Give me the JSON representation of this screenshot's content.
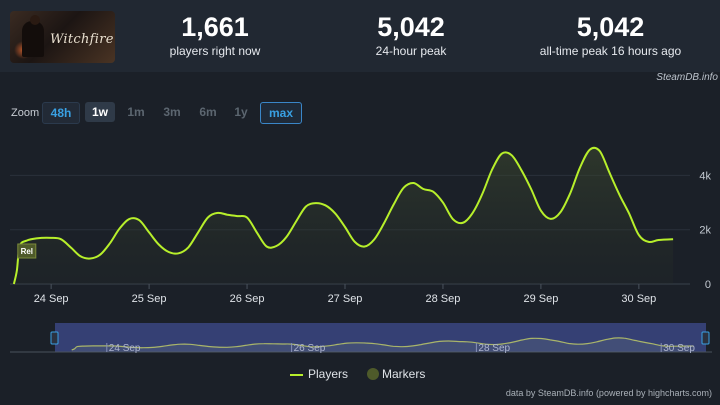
{
  "header": {
    "logo_icon": "witchfire-game-logo",
    "logo_text": "Witchfire",
    "stats": [
      {
        "value": "1,661",
        "label": "players right now"
      },
      {
        "value": "5,042",
        "label": "24-hour peak"
      },
      {
        "value": "5,042",
        "label": "all-time peak 16 hours ago"
      }
    ],
    "credit": "SteamDB.info"
  },
  "zoom": {
    "label": "Zoom",
    "buttons": [
      "48h",
      "1w",
      "1m",
      "3m",
      "6m",
      "1y",
      "max"
    ]
  },
  "legend": {
    "players": "Players",
    "markers": "Markers"
  },
  "footer": {
    "credit": "data by SteamDB.info (powered by highcharts.com)"
  },
  "colors": {
    "line": "#b7ef2b",
    "marker": "#4e5a2a",
    "navigator_bg": "#3a4681",
    "background": "#1b2028"
  },
  "chart_data": {
    "type": "line",
    "series": [
      {
        "name": "Players"
      }
    ],
    "x_ticks": [
      "24 Sep",
      "25 Sep",
      "26 Sep",
      "27 Sep",
      "28 Sep",
      "29 Sep",
      "30 Sep"
    ],
    "navigator_ticks": [
      "24 Sep",
      "26 Sep",
      "28 Sep",
      "30 Sep"
    ],
    "y_ticks": [
      "0",
      "2k",
      "4k"
    ],
    "ylim": [
      0,
      5600
    ],
    "xlim": [
      -0.42,
      6.42
    ],
    "marker_label": "Rel",
    "points": [
      [
        -0.38,
        0
      ],
      [
        -0.35,
        500
      ],
      [
        -0.32,
        1400
      ],
      [
        -0.25,
        1600
      ],
      [
        -0.15,
        1680
      ],
      [
        0,
        1700
      ],
      [
        0.1,
        1650
      ],
      [
        0.2,
        1350
      ],
      [
        0.3,
        1020
      ],
      [
        0.4,
        940
      ],
      [
        0.5,
        1080
      ],
      [
        0.6,
        1500
      ],
      [
        0.7,
        2050
      ],
      [
        0.8,
        2400
      ],
      [
        0.9,
        2350
      ],
      [
        1.0,
        1900
      ],
      [
        1.1,
        1450
      ],
      [
        1.2,
        1180
      ],
      [
        1.3,
        1130
      ],
      [
        1.4,
        1350
      ],
      [
        1.5,
        1900
      ],
      [
        1.6,
        2450
      ],
      [
        1.7,
        2620
      ],
      [
        1.8,
        2550
      ],
      [
        1.9,
        2500
      ],
      [
        2.0,
        2450
      ],
      [
        2.1,
        1900
      ],
      [
        2.2,
        1380
      ],
      [
        2.3,
        1400
      ],
      [
        2.4,
        1720
      ],
      [
        2.5,
        2300
      ],
      [
        2.6,
        2850
      ],
      [
        2.7,
        2980
      ],
      [
        2.8,
        2900
      ],
      [
        2.9,
        2600
      ],
      [
        3.0,
        2100
      ],
      [
        3.1,
        1550
      ],
      [
        3.2,
        1380
      ],
      [
        3.3,
        1650
      ],
      [
        3.4,
        2250
      ],
      [
        3.5,
        2950
      ],
      [
        3.6,
        3550
      ],
      [
        3.7,
        3720
      ],
      [
        3.8,
        3500
      ],
      [
        3.9,
        3400
      ],
      [
        4.0,
        3000
      ],
      [
        4.1,
        2400
      ],
      [
        4.2,
        2250
      ],
      [
        4.3,
        2600
      ],
      [
        4.4,
        3300
      ],
      [
        4.5,
        4200
      ],
      [
        4.6,
        4800
      ],
      [
        4.7,
        4750
      ],
      [
        4.8,
        4200
      ],
      [
        4.9,
        3500
      ],
      [
        5.0,
        2700
      ],
      [
        5.1,
        2400
      ],
      [
        5.2,
        2650
      ],
      [
        5.3,
        3350
      ],
      [
        5.4,
        4300
      ],
      [
        5.5,
        4950
      ],
      [
        5.6,
        4900
      ],
      [
        5.7,
        4100
      ],
      [
        5.8,
        3300
      ],
      [
        5.9,
        2600
      ],
      [
        6.0,
        1800
      ],
      [
        6.1,
        1550
      ],
      [
        6.2,
        1620
      ],
      [
        6.35,
        1650
      ]
    ]
  }
}
